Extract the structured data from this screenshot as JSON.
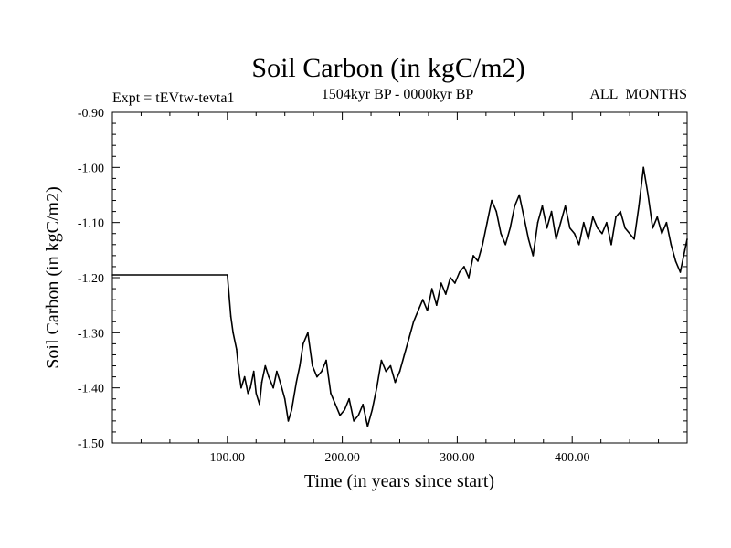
{
  "chart_data": {
    "type": "line",
    "title": "Soil Carbon (in kgC/m2)",
    "subtitle": "1504kyr BP - 0000kyr BP",
    "experiment_label": "Expt = tEVtw-tevta1",
    "period_label": "ALL_MONTHS",
    "xlabel": "Time (in years since start)",
    "ylabel": "Soil Carbon (in kgC/m2)",
    "xlim": [
      0,
      500
    ],
    "ylim": [
      -1.5,
      -0.9
    ],
    "x_ticks": [
      100,
      200,
      300,
      400
    ],
    "x_tick_labels": [
      "100.00",
      "200.00",
      "300.00",
      "400.00"
    ],
    "y_ticks": [
      -0.9,
      -1.0,
      -1.1,
      -1.2,
      -1.3,
      -1.4,
      -1.5
    ],
    "y_tick_labels": [
      "-0.90",
      "-1.00",
      "-1.10",
      "-1.20",
      "-1.30",
      "-1.40",
      "-1.50"
    ],
    "grid": false,
    "series": [
      {
        "name": "Soil Carbon",
        "color": "#000000",
        "x": [
          0,
          100,
          101,
          103,
          105,
          108,
          110,
          112,
          115,
          118,
          120,
          123,
          125,
          128,
          130,
          133,
          136,
          140,
          143,
          146,
          150,
          153,
          156,
          160,
          163,
          166,
          170,
          174,
          178,
          182,
          186,
          190,
          194,
          198,
          202,
          206,
          210,
          214,
          218,
          222,
          226,
          230,
          234,
          238,
          242,
          246,
          250,
          254,
          258,
          262,
          266,
          270,
          274,
          278,
          282,
          286,
          290,
          294,
          298,
          302,
          306,
          310,
          314,
          318,
          322,
          326,
          330,
          334,
          338,
          342,
          346,
          350,
          354,
          358,
          362,
          366,
          370,
          374,
          378,
          382,
          386,
          390,
          394,
          398,
          402,
          406,
          410,
          414,
          418,
          422,
          426,
          430,
          434,
          438,
          442,
          446,
          450,
          454,
          458,
          462,
          466,
          470,
          474,
          478,
          482,
          486,
          490,
          494,
          498,
          500
        ],
        "values": [
          -1.195,
          -1.195,
          -1.22,
          -1.27,
          -1.3,
          -1.33,
          -1.37,
          -1.4,
          -1.38,
          -1.41,
          -1.4,
          -1.37,
          -1.41,
          -1.43,
          -1.39,
          -1.36,
          -1.38,
          -1.4,
          -1.37,
          -1.39,
          -1.42,
          -1.46,
          -1.44,
          -1.39,
          -1.36,
          -1.32,
          -1.3,
          -1.36,
          -1.38,
          -1.37,
          -1.35,
          -1.41,
          -1.43,
          -1.45,
          -1.44,
          -1.42,
          -1.46,
          -1.45,
          -1.43,
          -1.47,
          -1.44,
          -1.4,
          -1.35,
          -1.37,
          -1.36,
          -1.39,
          -1.37,
          -1.34,
          -1.31,
          -1.28,
          -1.26,
          -1.24,
          -1.26,
          -1.22,
          -1.25,
          -1.21,
          -1.23,
          -1.2,
          -1.21,
          -1.19,
          -1.18,
          -1.2,
          -1.16,
          -1.17,
          -1.14,
          -1.1,
          -1.06,
          -1.08,
          -1.12,
          -1.14,
          -1.11,
          -1.07,
          -1.05,
          -1.09,
          -1.13,
          -1.16,
          -1.1,
          -1.07,
          -1.11,
          -1.08,
          -1.13,
          -1.1,
          -1.07,
          -1.11,
          -1.12,
          -1.14,
          -1.1,
          -1.13,
          -1.09,
          -1.11,
          -1.12,
          -1.1,
          -1.14,
          -1.09,
          -1.08,
          -1.11,
          -1.12,
          -1.13,
          -1.07,
          -1.0,
          -1.05,
          -1.11,
          -1.09,
          -1.12,
          -1.1,
          -1.14,
          -1.17,
          -1.19,
          -1.15,
          -1.13
        ]
      }
    ]
  }
}
